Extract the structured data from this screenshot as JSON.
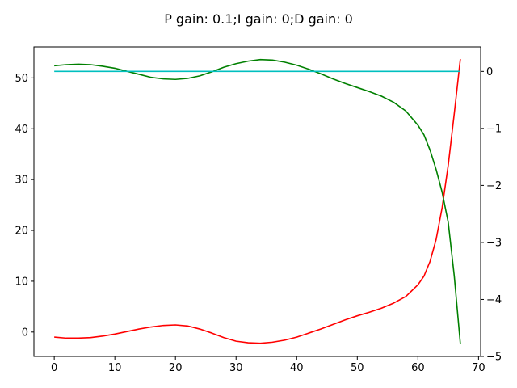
{
  "chart_data": {
    "type": "line",
    "title": "P gain: 0.1;I gain: 0;D gain: 0",
    "xlim": [
      -3.35,
      70.35
    ],
    "ylim_left": [
      -4.8,
      56.1
    ],
    "ylim_right": [
      -5.0,
      0.43
    ],
    "x_ticks": [
      0,
      10,
      20,
      30,
      40,
      50,
      60,
      70
    ],
    "y_left_ticks": [
      0,
      10,
      20,
      30,
      40,
      50
    ],
    "y_right_ticks": [
      0,
      -1,
      -2,
      -3,
      -4,
      -5
    ],
    "x_tick_labels": [
      "0",
      "10",
      "20",
      "30",
      "40",
      "50",
      "60",
      "70"
    ],
    "y_left_tick_labels": [
      "0",
      "10",
      "20",
      "30",
      "40",
      "50"
    ],
    "y_right_tick_labels": [
      "0",
      "−1",
      "−2",
      "−3",
      "−4",
      "−5"
    ],
    "grid": false,
    "series": [
      {
        "axis": "left",
        "color": "#ff0000",
        "x": [
          0,
          2,
          4,
          6,
          8,
          10,
          12,
          14,
          16,
          18,
          20,
          22,
          24,
          26,
          28,
          30,
          32,
          34,
          36,
          38,
          40,
          42,
          44,
          46,
          48,
          50,
          52,
          54,
          56,
          58,
          60,
          61,
          62,
          63,
          64,
          65,
          66,
          67
        ],
        "y": [
          -1.0,
          -1.2,
          -1.2,
          -1.1,
          -0.8,
          -0.4,
          0.1,
          0.6,
          1.0,
          1.3,
          1.4,
          1.2,
          0.6,
          -0.2,
          -1.1,
          -1.8,
          -2.1,
          -2.2,
          -2.0,
          -1.6,
          -1.0,
          -0.2,
          0.6,
          1.5,
          2.4,
          3.2,
          3.9,
          4.7,
          5.7,
          7.0,
          9.3,
          11.0,
          13.9,
          18.2,
          24.5,
          32.8,
          43.0,
          53.7
        ]
      },
      {
        "axis": "left",
        "color": "#008000",
        "x": [
          0,
          2,
          4,
          6,
          8,
          10,
          12,
          14,
          16,
          18,
          20,
          22,
          24,
          26,
          28,
          30,
          32,
          34,
          36,
          38,
          40,
          42,
          44,
          46,
          48,
          50,
          52,
          54,
          56,
          58,
          60,
          61,
          62,
          63,
          64,
          65,
          66,
          67
        ],
        "y": [
          52.4,
          52.6,
          52.7,
          52.6,
          52.3,
          51.9,
          51.3,
          50.7,
          50.1,
          49.8,
          49.7,
          49.9,
          50.4,
          51.2,
          52.1,
          52.8,
          53.3,
          53.6,
          53.5,
          53.1,
          52.5,
          51.7,
          50.8,
          49.8,
          48.9,
          48.1,
          47.3,
          46.4,
          45.2,
          43.5,
          40.7,
          38.8,
          35.8,
          32.0,
          27.5,
          21.6,
          11.0,
          -2.3
        ]
      },
      {
        "axis": "right",
        "color": "#00bfbf",
        "x": [
          0,
          67
        ],
        "y": [
          0.0,
          0.0
        ]
      }
    ]
  }
}
